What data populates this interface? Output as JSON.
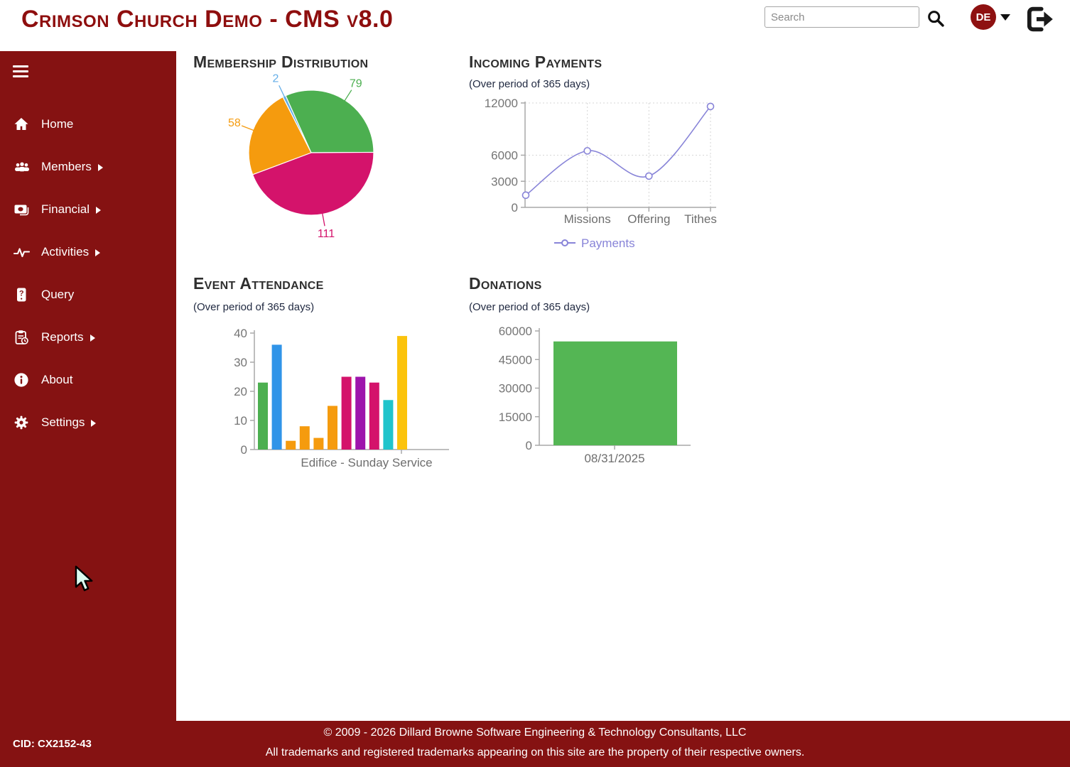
{
  "header": {
    "title": "Crimson Church Demo - CMS v8.0",
    "search": {
      "placeholder": "Search"
    },
    "user_initials": "DE"
  },
  "sidebar": {
    "items": [
      {
        "label": "Home",
        "icon": "home-icon",
        "submenu": false
      },
      {
        "label": "Members",
        "icon": "members-icon",
        "submenu": true
      },
      {
        "label": "Financial",
        "icon": "financial-icon",
        "submenu": true
      },
      {
        "label": "Activities",
        "icon": "activities-icon",
        "submenu": true
      },
      {
        "label": "Query",
        "icon": "query-icon",
        "submenu": false
      },
      {
        "label": "Reports",
        "icon": "reports-icon",
        "submenu": true
      },
      {
        "label": "About",
        "icon": "about-icon",
        "submenu": false
      },
      {
        "label": "Settings",
        "icon": "settings-icon",
        "submenu": true
      }
    ]
  },
  "chart_data": [
    {
      "type": "pie",
      "title": "Membership Distribution",
      "start_angle_deg": -27,
      "slices": [
        {
          "label": "2",
          "value": 2,
          "color": "#64aee8"
        },
        {
          "label": "79",
          "value": 79,
          "color": "#4caf50"
        },
        {
          "label": "111",
          "value": 111,
          "color": "#d4136b"
        },
        {
          "label": "58",
          "value": 58,
          "color": "#f59b0e"
        }
      ]
    },
    {
      "type": "line",
      "title": "Incoming Payments",
      "subtitle": "(Over period of 365 days)",
      "categories": [
        "",
        "Missions",
        "Offering",
        "Tithes"
      ],
      "series": [
        {
          "name": "Payments",
          "color": "#8884d8",
          "values": [
            1400,
            6500,
            3600,
            11600
          ]
        }
      ],
      "yticks": [
        0,
        3000,
        6000,
        12000
      ],
      "ymax": 12000,
      "legend": {
        "label": "Payments"
      }
    },
    {
      "type": "bar",
      "title": "Event Attendance",
      "subtitle": "(Over period of 365 days)",
      "values": [
        23,
        36,
        3,
        8,
        4,
        15,
        25,
        25,
        23,
        17,
        39
      ],
      "bar_colors": [
        "#4caf50",
        "#3094e8",
        "#f59b0e",
        "#f59b0e",
        "#f59b0e",
        "#f59b0e",
        "#d4136b",
        "#9e14ac",
        "#d4136b",
        "#20c4cb",
        "#fbc30c"
      ],
      "yticks": [
        0,
        10,
        20,
        30,
        40
      ],
      "ymax": 40,
      "xlabel": "Edifice - Sunday Service"
    },
    {
      "type": "bar",
      "title": "Donations",
      "subtitle": "(Over period of 365 days)",
      "categories": [
        "08/31/2025"
      ],
      "values": [
        54500
      ],
      "bar_colors": [
        "#54b654"
      ],
      "yticks": [
        0,
        15000,
        30000,
        45000,
        60000
      ],
      "ymax": 60000
    }
  ],
  "footer": {
    "cid": "CID: CX2152-43",
    "copyright": "© 2009 - 2026 Dillard Browne Software Engineering & Technology Consultants, LLC",
    "trademark": "All trademarks and registered trademarks appearing on this site are the property of their respective owners."
  },
  "colors": {
    "brand": "#851212",
    "accent_line": "#8884d8",
    "axis_text": "#757575",
    "axis_line": "#a8a8a8",
    "grid": "#d6d6d6"
  }
}
